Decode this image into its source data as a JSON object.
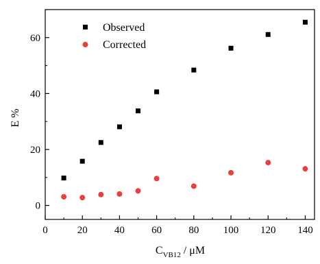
{
  "chart_data": {
    "type": "scatter",
    "title": "",
    "xlabel": {
      "main": "C",
      "sub": "VB12",
      "rest": " / μM"
    },
    "ylabel": "E %",
    "xlim": [
      0,
      145
    ],
    "ylim": [
      -5,
      70
    ],
    "xticks": [
      0,
      20,
      40,
      60,
      80,
      100,
      120,
      140
    ],
    "yticks": [
      0,
      20,
      40,
      60
    ],
    "grid": false,
    "legend_position": "top-left",
    "series": [
      {
        "name": "Observed",
        "marker": "square",
        "color": "#000000",
        "x": [
          10,
          20,
          30,
          40,
          50,
          60,
          80,
          100,
          120,
          140
        ],
        "y": [
          9.8,
          15.8,
          22.5,
          28.1,
          33.8,
          40.6,
          48.4,
          56.2,
          61.1,
          65.5
        ]
      },
      {
        "name": "Corrected",
        "marker": "circle",
        "color": "#e8403a",
        "x": [
          10,
          20,
          30,
          40,
          50,
          60,
          80,
          100,
          120,
          140
        ],
        "y": [
          3.1,
          2.8,
          3.9,
          4.1,
          5.2,
          9.6,
          6.9,
          11.7,
          15.3,
          13.1
        ]
      }
    ]
  }
}
